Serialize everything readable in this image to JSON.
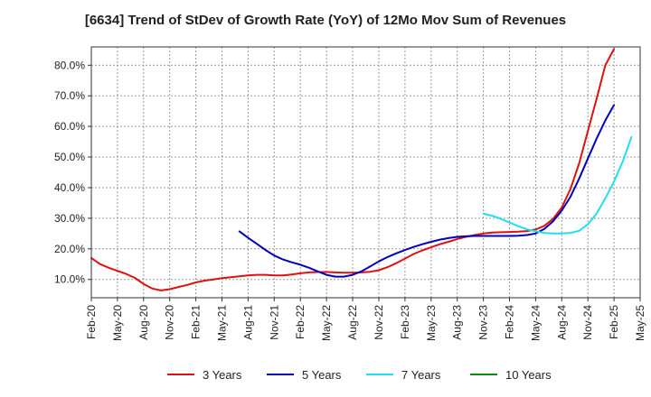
{
  "chart_data": {
    "type": "line",
    "title": "[6634]  Trend of StDev of Growth Rate (YoY) of 12Mo Mov Sum of Revenues",
    "xlabel": "",
    "ylabel": "",
    "ylim": [
      4.0,
      86.0
    ],
    "y_ticks": [
      10,
      20,
      30,
      40,
      50,
      60,
      70,
      80
    ],
    "y_tick_labels": [
      "10.0%",
      "20.0%",
      "30.0%",
      "40.0%",
      "50.0%",
      "60.0%",
      "70.0%",
      "80.0%"
    ],
    "x_range_months": [
      0,
      63
    ],
    "x_ticks": [
      0,
      3,
      6,
      9,
      12,
      15,
      18,
      21,
      24,
      27,
      30,
      33,
      36,
      39,
      42,
      45,
      48,
      51,
      54,
      57,
      60,
      63
    ],
    "x_tick_labels": [
      "Feb-20",
      "May-20",
      "Aug-20",
      "Nov-20",
      "Feb-21",
      "May-21",
      "Aug-21",
      "Nov-21",
      "Feb-22",
      "May-22",
      "Aug-22",
      "Nov-22",
      "Feb-23",
      "May-23",
      "Aug-23",
      "Nov-23",
      "Feb-24",
      "May-24",
      "Aug-24",
      "Nov-24",
      "Feb-25",
      "May-25"
    ],
    "grid": true,
    "legend_position": "bottom",
    "series": [
      {
        "name": "3 Years",
        "color": "#dd1111",
        "start": 0,
        "values": [
          17.0,
          15.0,
          13.8,
          12.8,
          11.8,
          10.5,
          8.5,
          7.0,
          6.4,
          6.8,
          7.5,
          8.2,
          9.0,
          9.6,
          10.0,
          10.4,
          10.7,
          11.0,
          11.3,
          11.5,
          11.5,
          11.3,
          11.3,
          11.6,
          12.0,
          12.3,
          12.4,
          12.4,
          12.3,
          12.2,
          12.2,
          12.3,
          12.5,
          13.0,
          14.0,
          15.3,
          16.8,
          18.3,
          19.5,
          20.5,
          21.5,
          22.3,
          23.2,
          23.9,
          24.5,
          25.0,
          25.3,
          25.4,
          25.5,
          25.6,
          25.8,
          26.3,
          27.5,
          29.8,
          33.5,
          39.5,
          48.0,
          58.5,
          69.0,
          80.0,
          85.3
        ]
      },
      {
        "name": "5 Years",
        "color": "#0000bb",
        "start": 17,
        "values": [
          25.7,
          23.6,
          21.6,
          19.6,
          17.8,
          16.5,
          15.6,
          14.8,
          13.8,
          12.6,
          11.5,
          10.9,
          10.9,
          11.5,
          12.6,
          14.2,
          15.9,
          17.3,
          18.5,
          19.6,
          20.6,
          21.5,
          22.3,
          23.0,
          23.5,
          23.9,
          24.1,
          24.2,
          24.2,
          24.2,
          24.2,
          24.2,
          24.3,
          24.5,
          25.0,
          26.5,
          29.0,
          32.5,
          37.0,
          43.0,
          49.5,
          56.0,
          62.0,
          67.0
        ]
      },
      {
        "name": "7 Years",
        "color": "#22ddee",
        "start": 45,
        "values": [
          31.5,
          30.8,
          29.8,
          28.6,
          27.4,
          26.4,
          25.7,
          25.2,
          25.0,
          25.0,
          25.2,
          25.9,
          28.0,
          31.5,
          36.5,
          42.0,
          48.5,
          56.5
        ]
      },
      {
        "name": "10 Years",
        "color": "#118811",
        "start": 0,
        "values": []
      }
    ]
  }
}
